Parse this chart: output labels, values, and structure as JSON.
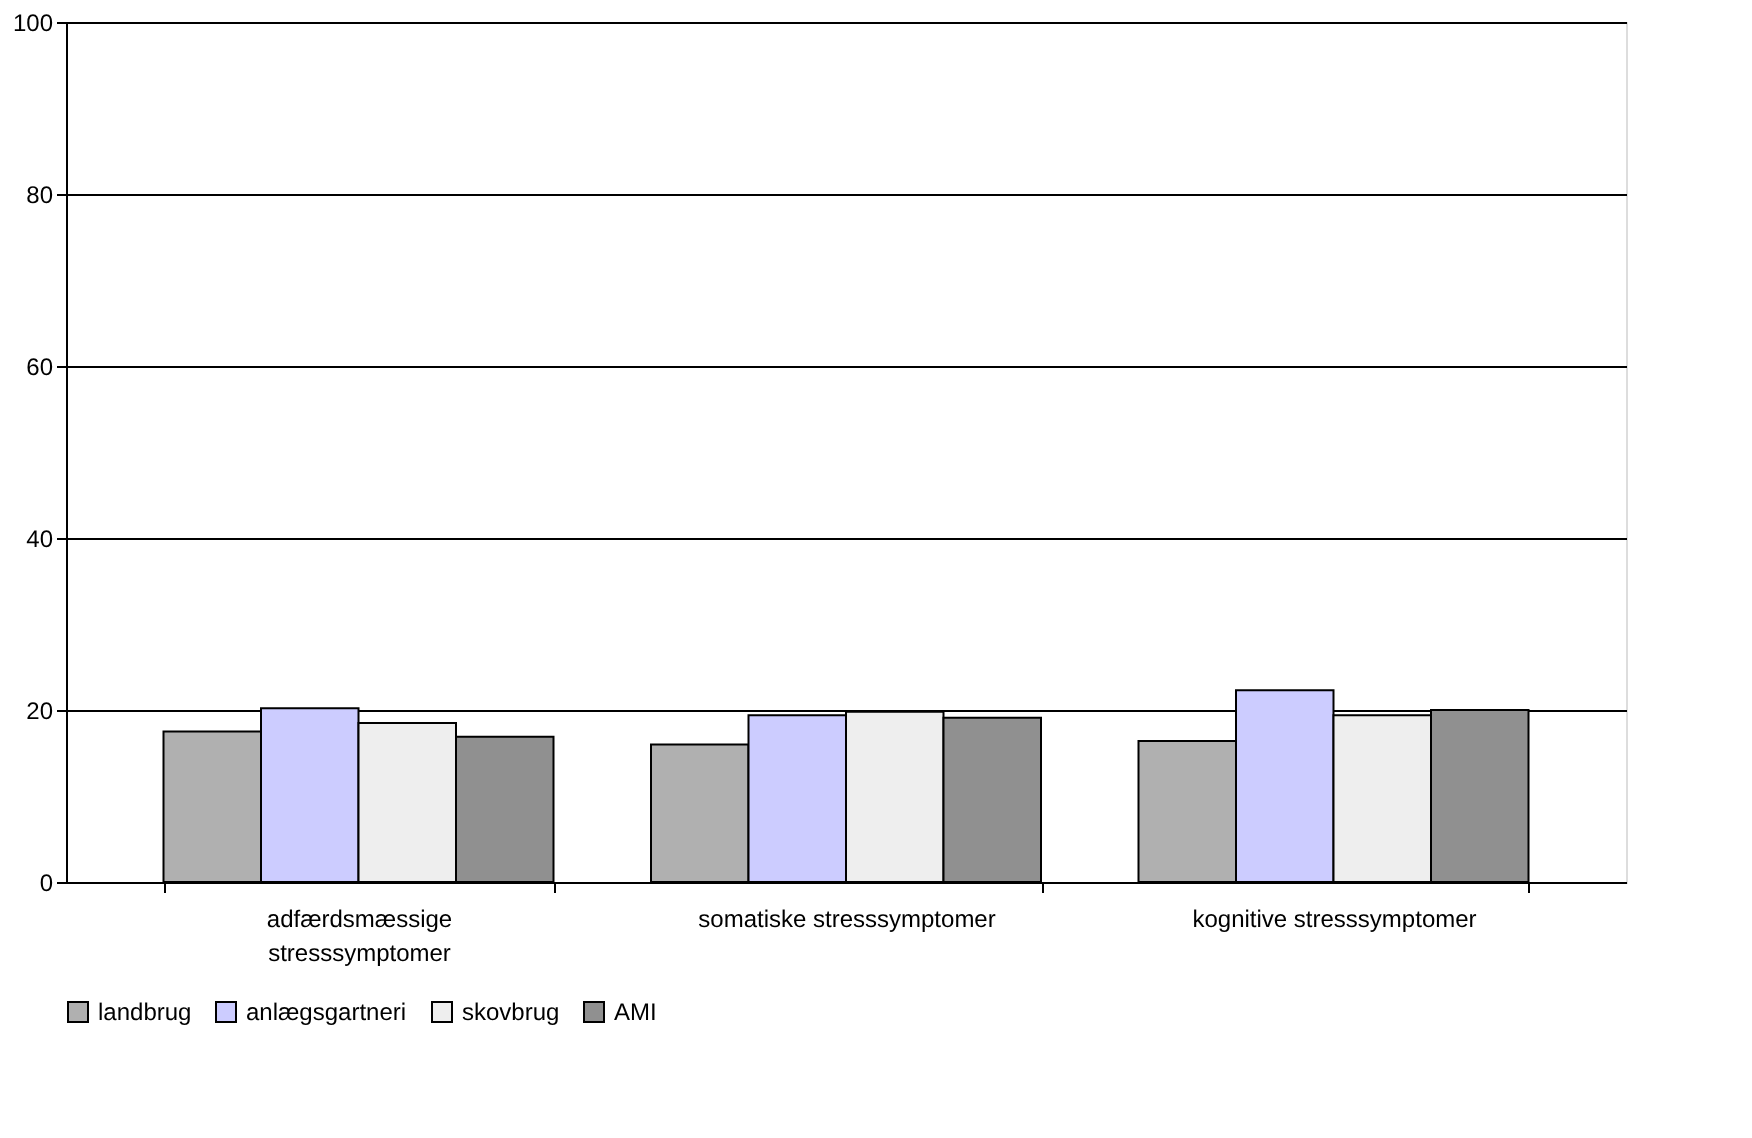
{
  "chart_data": {
    "type": "bar",
    "categories": [
      "adfærdsmæssige stresssymptomer",
      "somatiske stresssymptomer",
      "kognitive stresssymptomer"
    ],
    "series": [
      {
        "name": "landbrug",
        "color": "#b0b0b0",
        "values": [
          17.5,
          16.0,
          16.4
        ]
      },
      {
        "name": "anlægsgartneri",
        "color": "#ccccff",
        "values": [
          20.2,
          19.4,
          22.3
        ]
      },
      {
        "name": "skovbrug",
        "color": "#eeeeee",
        "values": [
          18.5,
          19.8,
          19.4
        ]
      },
      {
        "name": "AMI",
        "color": "#909090",
        "values": [
          16.9,
          19.1,
          20.0
        ]
      }
    ],
    "ylim": [
      0,
      100
    ],
    "yticks": [
      0,
      20,
      40,
      60,
      80,
      100
    ],
    "grid": "y",
    "legend": "bottom"
  }
}
